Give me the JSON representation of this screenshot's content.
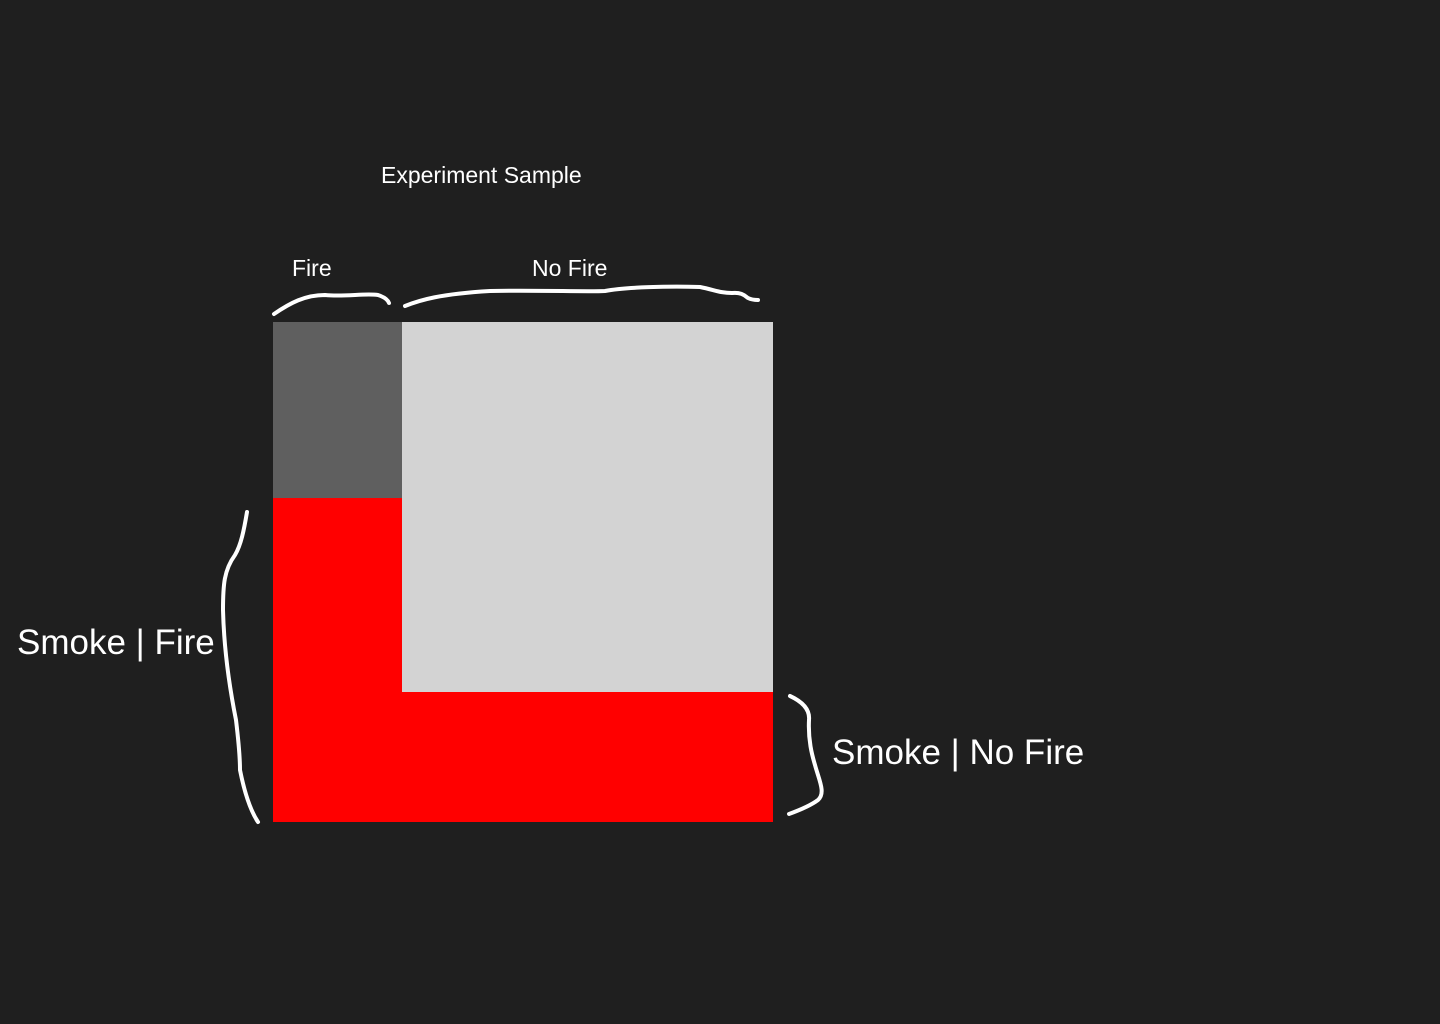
{
  "title": "Experiment Sample",
  "columns": {
    "fire": "Fire",
    "no_fire": "No Fire"
  },
  "rows": {
    "smoke_given_fire": "Smoke | Fire",
    "smoke_given_no_fire": "Smoke | No Fire"
  },
  "colors": {
    "background": "#1f1f1f",
    "smoke": "#ff0000",
    "fire_no_smoke": "#5f5f5f",
    "no_fire_no_smoke": "#d3d3d3",
    "annotation": "#ffffff"
  }
}
